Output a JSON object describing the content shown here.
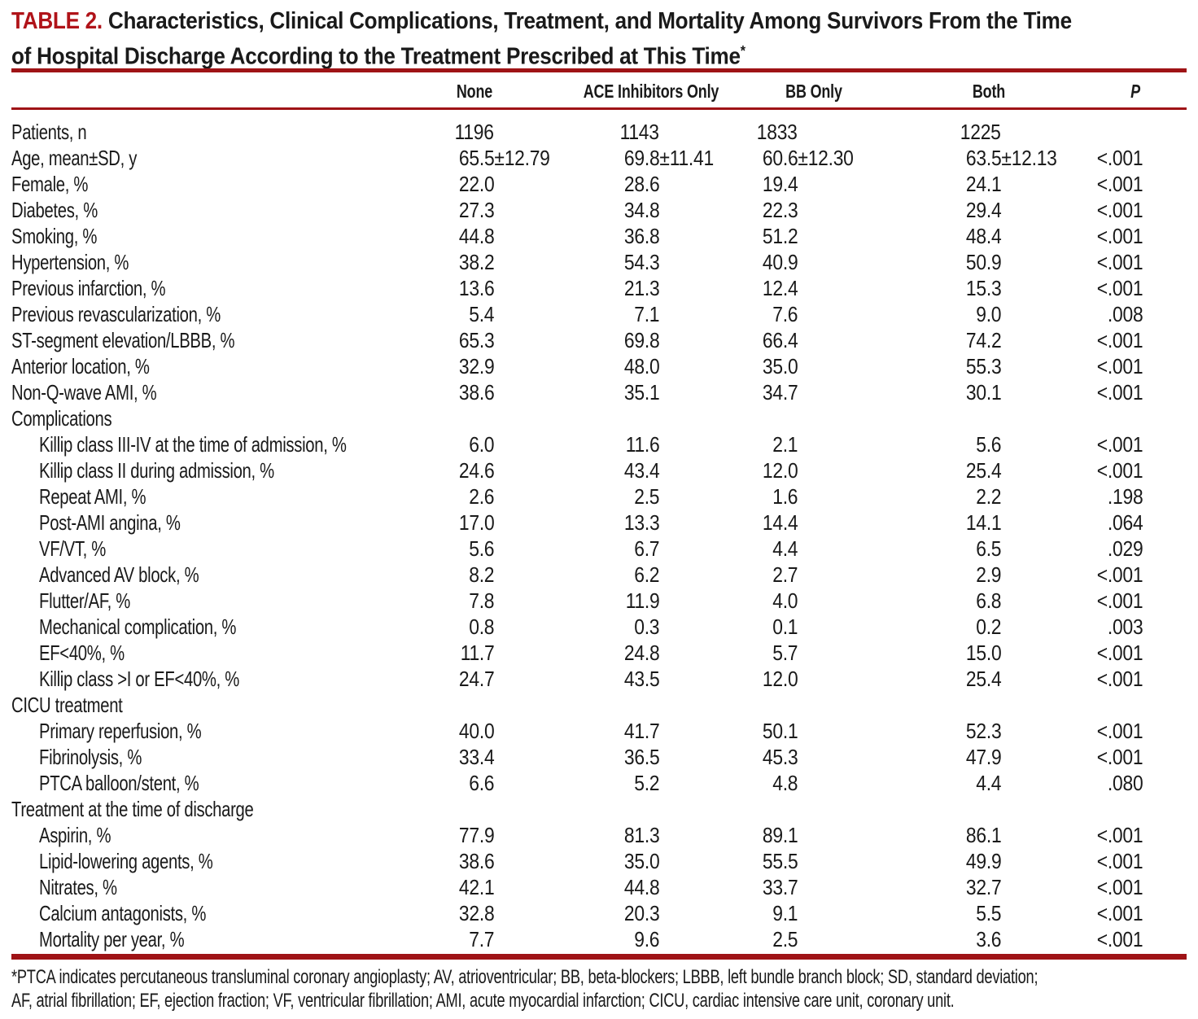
{
  "colors": {
    "accent_red": "#b01319",
    "rule_red": "#9f1316",
    "text_black": "#1a1a1a",
    "background": "#ffffff"
  },
  "table": {
    "label": "TABLE 2.",
    "title_line1": "Characteristics, Clinical Complications, Treatment, and Mortality Among Survivors From the Time",
    "title_line2": "of Hospital Discharge According to the Treatment Prescribed at This Time",
    "title_footnote_marker": "*",
    "columns": [
      {
        "label": "None"
      },
      {
        "label": "ACE Inhibitors Only"
      },
      {
        "label": "BB Only"
      },
      {
        "label": "Both"
      },
      {
        "label": "P"
      }
    ],
    "rows": [
      {
        "label": "Patients, n",
        "indent": 0,
        "section": false,
        "values": [
          "1196",
          "1143",
          "1833",
          "1225",
          ""
        ]
      },
      {
        "label": "Age, mean±SD, y",
        "indent": 0,
        "section": false,
        "values": [
          "65.5±12.79",
          "69.8±11.41",
          "60.6±12.30",
          "63.5±12.13",
          "<.001"
        ]
      },
      {
        "label": "Female, %",
        "indent": 0,
        "section": false,
        "values": [
          "22.0",
          "28.6",
          "19.4",
          "24.1",
          "<.001"
        ]
      },
      {
        "label": "Diabetes, %",
        "indent": 0,
        "section": false,
        "values": [
          "27.3",
          "34.8",
          "22.3",
          "29.4",
          "<.001"
        ]
      },
      {
        "label": "Smoking, %",
        "indent": 0,
        "section": false,
        "values": [
          "44.8",
          "36.8",
          "51.2",
          "48.4",
          "<.001"
        ]
      },
      {
        "label": "Hypertension, %",
        "indent": 0,
        "section": false,
        "values": [
          "38.2",
          "54.3",
          "40.9",
          "50.9",
          "<.001"
        ]
      },
      {
        "label": "Previous infarction, %",
        "indent": 0,
        "section": false,
        "values": [
          "13.6",
          "21.3",
          "12.4",
          "15.3",
          "<.001"
        ]
      },
      {
        "label": "Previous revascularization, %",
        "indent": 0,
        "section": false,
        "values": [
          "5.4",
          "7.1",
          "7.6",
          "9.0",
          ".008"
        ]
      },
      {
        "label": "ST-segment elevation/LBBB, %",
        "indent": 0,
        "section": false,
        "values": [
          "65.3",
          "69.8",
          "66.4",
          "74.2",
          "<.001"
        ]
      },
      {
        "label": "Anterior location, %",
        "indent": 0,
        "section": false,
        "values": [
          "32.9",
          "48.0",
          "35.0",
          "55.3",
          "<.001"
        ]
      },
      {
        "label": "Non-Q-wave AMI, %",
        "indent": 0,
        "section": false,
        "values": [
          "38.6",
          "35.1",
          "34.7",
          "30.1",
          "<.001"
        ]
      },
      {
        "label": "Complications",
        "indent": 0,
        "section": true,
        "values": [
          "",
          "",
          "",
          "",
          ""
        ]
      },
      {
        "label": "Killip class III-IV at the time of admission, %",
        "indent": 1,
        "section": false,
        "values": [
          "6.0",
          "11.6",
          "2.1",
          "5.6",
          "<.001"
        ]
      },
      {
        "label": "Killip class II during admission, %",
        "indent": 1,
        "section": false,
        "values": [
          "24.6",
          "43.4",
          "12.0",
          "25.4",
          "<.001"
        ]
      },
      {
        "label": "Repeat AMI, %",
        "indent": 1,
        "section": false,
        "values": [
          "2.6",
          "2.5",
          "1.6",
          "2.2",
          ".198"
        ]
      },
      {
        "label": "Post-AMI angina, %",
        "indent": 1,
        "section": false,
        "values": [
          "17.0",
          "13.3",
          "14.4",
          "14.1",
          ".064"
        ]
      },
      {
        "label": "VF/VT, %",
        "indent": 1,
        "section": false,
        "values": [
          "5.6",
          "6.7",
          "4.4",
          "6.5",
          ".029"
        ]
      },
      {
        "label": "Advanced AV block, %",
        "indent": 1,
        "section": false,
        "values": [
          "8.2",
          "6.2",
          "2.7",
          "2.9",
          "<.001"
        ]
      },
      {
        "label": "Flutter/AF, %",
        "indent": 1,
        "section": false,
        "values": [
          "7.8",
          "11.9",
          "4.0",
          "6.8",
          "<.001"
        ]
      },
      {
        "label": "Mechanical complication, %",
        "indent": 1,
        "section": false,
        "values": [
          "0.8",
          "0.3",
          "0.1",
          "0.2",
          ".003"
        ]
      },
      {
        "label": "EF<40%, %",
        "indent": 1,
        "section": false,
        "values": [
          "11.7",
          "24.8",
          "5.7",
          "15.0",
          "<.001"
        ]
      },
      {
        "label": "Killip class >I or EF<40%, %",
        "indent": 1,
        "section": false,
        "values": [
          "24.7",
          "43.5",
          "12.0",
          "25.4",
          "<.001"
        ]
      },
      {
        "label": "CICU treatment",
        "indent": 0,
        "section": true,
        "values": [
          "",
          "",
          "",
          "",
          ""
        ]
      },
      {
        "label": "Primary reperfusion, %",
        "indent": 1,
        "section": false,
        "values": [
          "40.0",
          "41.7",
          "50.1",
          "52.3",
          "<.001"
        ]
      },
      {
        "label": "Fibrinolysis, %",
        "indent": 1,
        "section": false,
        "values": [
          "33.4",
          "36.5",
          "45.3",
          "47.9",
          "<.001"
        ]
      },
      {
        "label": "PTCA balloon/stent, %",
        "indent": 1,
        "section": false,
        "values": [
          "6.6",
          "5.2",
          "4.8",
          "4.4",
          ".080"
        ]
      },
      {
        "label": "Treatment at the time of discharge",
        "indent": 0,
        "section": true,
        "values": [
          "",
          "",
          "",
          "",
          ""
        ]
      },
      {
        "label": "Aspirin, %",
        "indent": 1,
        "section": false,
        "values": [
          "77.9",
          "81.3",
          "89.1",
          "86.1",
          "<.001"
        ]
      },
      {
        "label": "Lipid-lowering agents, %",
        "indent": 1,
        "section": false,
        "values": [
          "38.6",
          "35.0",
          "55.5",
          "49.9",
          "<.001"
        ]
      },
      {
        "label": "Nitrates, %",
        "indent": 1,
        "section": false,
        "values": [
          "42.1",
          "44.8",
          "33.7",
          "32.7",
          "<.001"
        ]
      },
      {
        "label": "Calcium antagonists, %",
        "indent": 1,
        "section": false,
        "values": [
          "32.8",
          "20.3",
          "9.1",
          "5.5",
          "<.001"
        ]
      },
      {
        "label": "Mortality per year, %",
        "indent": 1,
        "section": false,
        "values": [
          "7.7",
          "9.6",
          "2.5",
          "3.6",
          "<.001"
        ]
      }
    ],
    "footnote_line1": "*PTCA indicates percutaneous transluminal coronary angioplasty; AV, atrioventricular; BB, beta-blockers; LBBB, left bundle branch block; SD, standard deviation;",
    "footnote_line2": "AF, atrial fibrillation; EF, ejection fraction; VF, ventricular fibrillation; AMI, acute myocardial infarction; CICU, cardiac intensive care unit, coronary unit."
  }
}
